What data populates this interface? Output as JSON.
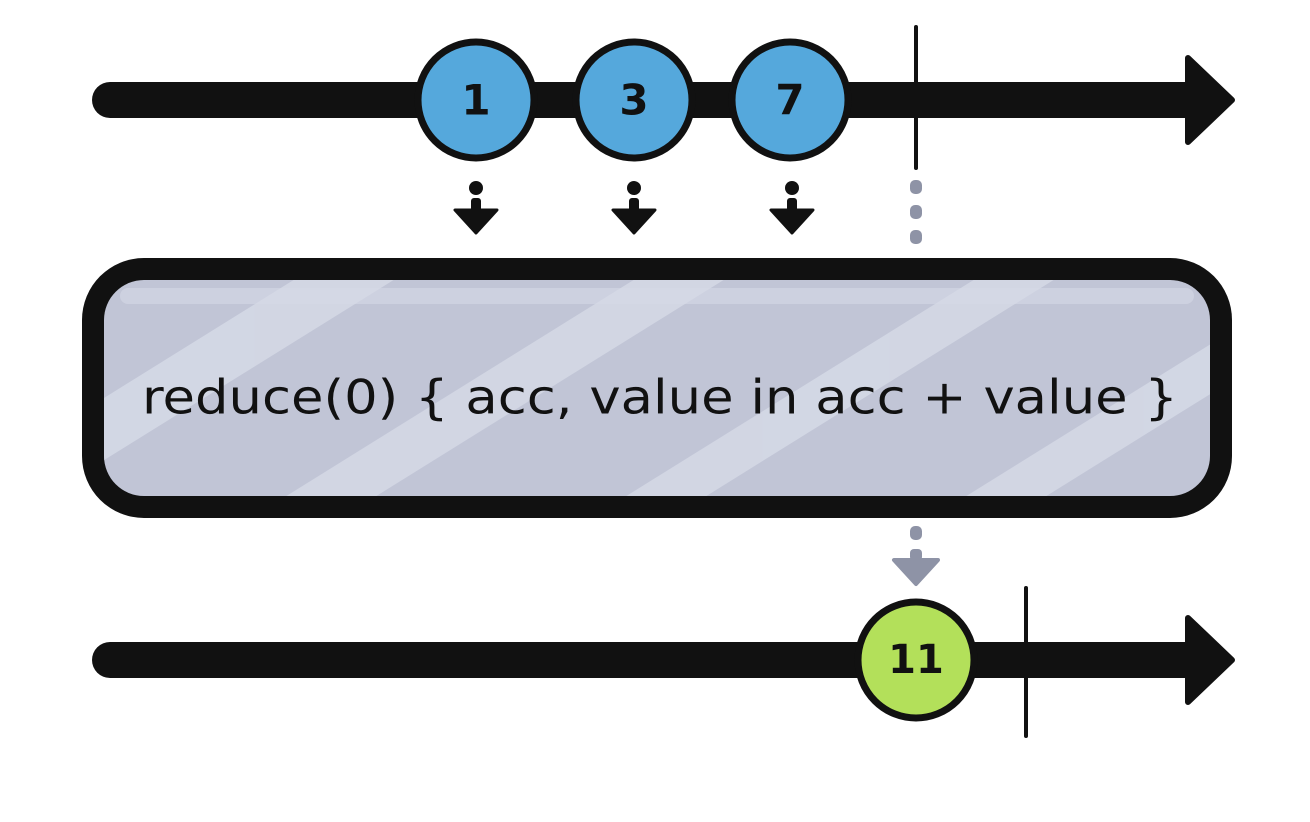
{
  "input_stream": {
    "marbles": [
      {
        "label": "1",
        "color": "#55a8dc"
      },
      {
        "label": "3",
        "color": "#55a8dc"
      },
      {
        "label": "7",
        "color": "#55a8dc"
      }
    ]
  },
  "operator": {
    "label": "reduce(0) { acc, value in acc + value }",
    "fill_color": "#c1c5d6",
    "stripe_color": "#d5d9e6"
  },
  "output_stream": {
    "marbles": [
      {
        "label": "11",
        "color": "#b3e05a"
      }
    ]
  },
  "colors": {
    "stroke": "#111111",
    "connector": "#8e93a6"
  }
}
